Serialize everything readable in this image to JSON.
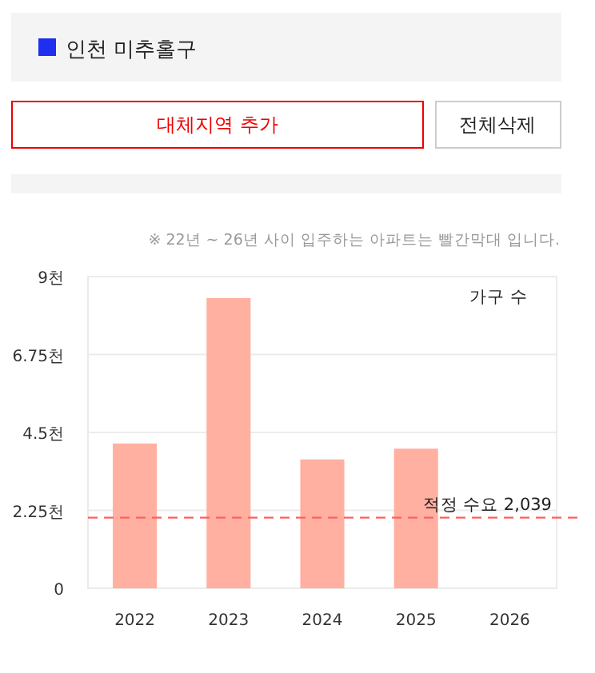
{
  "chart_data": {
    "type": "bar",
    "title": "인천 미추홀구",
    "annotations": [
      "대체지역 추가",
      "전체삭제",
      "※ 22년 ~ 26년 사이 입주하는 아파트는 빨간막대 입니다.",
      "가구 수"
    ],
    "categories": [
      "2022",
      "2023",
      "2024",
      "2025",
      "2026"
    ],
    "series": [
      {
        "color": "#ffb0a0",
        "values": [
          4.18,
          8.38,
          3.72,
          4.03,
          0
        ]
      }
    ],
    "ylim": [
      0,
      9
    ],
    "yticks": [
      {
        "value": 0,
        "label": "0"
      },
      {
        "value": 2.25,
        "label": "2.25천"
      },
      {
        "value": 4.5,
        "label": "4.5천"
      },
      {
        "value": 6.75,
        "label": "6.75천"
      },
      {
        "value": 9,
        "label": "9천"
      }
    ],
    "grid": "y",
    "ref_lines": [
      {
        "axis": "y",
        "value": 2.039,
        "label": "적정 수요 2,039",
        "color": "#ff6060",
        "line_style": "dashed"
      }
    ]
  }
}
